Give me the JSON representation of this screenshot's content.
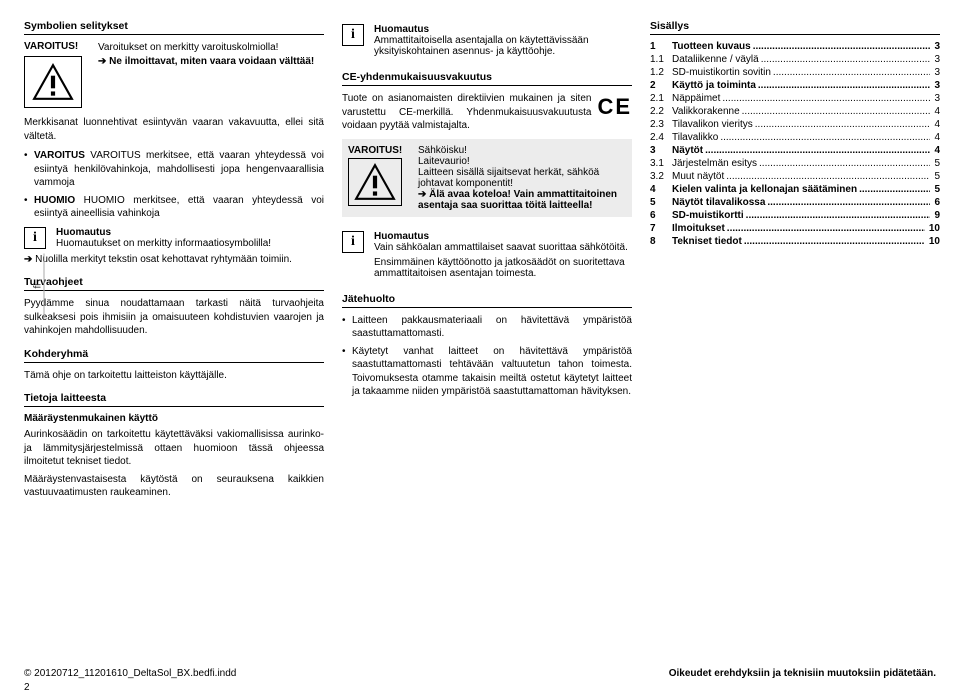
{
  "col1": {
    "symbolien_title": "Symbolien selitykset",
    "varoitus_label": "VAROITUS!",
    "varoitus_text1": "Varoitukset on merkitty varoituskolmiolla!",
    "varoitus_text2": "Ne ilmoittavat, miten vaara voidaan välttää!",
    "merkkisanat": "Merkkisanat luonnehtivat esiintyvän vaaran vakavuutta, ellei sitä vältetä.",
    "li1": "VAROITUS merkitsee, että vaaran yhteydessä voi esiintyä henkilövahinkoja, mahdollisesti jopa hengenvaarallisia vammoja",
    "li2": "HUOMIO merkitsee, että vaaran yhteydessä voi esiintyä aineellisia vahinkoja",
    "huomautus_label": "Huomautus",
    "huomautus_text": "Huomautukset on merkitty informaatio­symbolilla!",
    "nuolilla": "Nuolilla merkityt tekstin osat kehottavat ryhtymään toimiin.",
    "turva_title": "Turvaohjeet",
    "turva_text": "Pyydämme sinua noudattamaan tarkasti näitä turvaohjeita sulkeaksesi pois ihmisiin ja omaisuuteen kohdistuvien vaarojen ja vahinkojen mahdollisuuden.",
    "kohderyhma_title": "Kohderyhmä",
    "kohderyhma_text": "Tämä ohje on tarkoitettu laitteiston käyttäjälle.",
    "tietoja_title": "Tietoja laitteesta",
    "maarays_title": "Määräystenmukainen käyttö",
    "maarays_p1": "Aurinkosäädin on tarkoitettu käytettäväksi vakiomallisissa aurinko- ja lämmitysjärjestelmissä ottaen huomioon tässä ohjeessa ilmoitetut tekniset tiedot.",
    "maarays_p2": "Määräystenvastaisesta käytöstä on seurauksena kaikkien vastuuvaatimusten raukeaminen."
  },
  "col2": {
    "huomautus_label": "Huomautus",
    "huomautus_text": "Ammattitaitoisella asentajalla on käytettävissään yksityiskohtainen asennus- ja käyttöohje.",
    "ce_title": "CE-yhdenmukaisuusvakuutus",
    "ce_text": "Tuote on asianomaisten direktiivien mukainen ja siten varustettu CE-merkillä. Yhdenmukaisuusvakuutusta voidaan pyytää valmistajalta.",
    "warn_label": "VAROITUS!",
    "warn_head": "Sähköisku!",
    "warn_l1": "Laitevaurio!",
    "warn_l2": "Laitteen sisällä sijaitsevat herkät, sähköä johtavat komponentit!",
    "warn_l3a": "Älä avaa koteloa!",
    "warn_l3b": "Vain ammattitaitoinen asentaja saa suorittaa töitä laitteella!",
    "huom2_label": "Huomautus",
    "huom2_text": "Vain sähköalan ammattilaiset saavat suorittaa sähkötöitä.",
    "huom2_text2": "Ensimmäinen käyttöönotto ja jatkosäädöt on suoritettava ammattitaitoisen asentajan toimesta.",
    "jate_title": "Jätehuolto",
    "jate_li1": "Laitteen pakkausmateriaali on hävitettävä ympäristöä saastuttamattomasti.",
    "jate_li2": "Käytetyt vanhat laitteet on hävitettävä ympäristöä saastuttamattomasti tehtävään valtuutetun tahon toimesta. Toivomuksesta otamme takaisin meiltä ostetut käytetyt laitteet ja takaamme niiden ympäristöä saastuttamattoman hävityksen."
  },
  "col3": {
    "sisallys": "Sisällys",
    "toc": [
      {
        "n": "1",
        "t": "Tuotteen kuvaus",
        "p": "3",
        "b": true
      },
      {
        "n": "1.1",
        "t": "Dataliikenne / väylä",
        "p": "3",
        "b": false
      },
      {
        "n": "1.2",
        "t": "SD-muistikortin sovitin",
        "p": "3",
        "b": false
      },
      {
        "n": "2",
        "t": "Käyttö ja toiminta",
        "p": "3",
        "b": true
      },
      {
        "n": "2.1",
        "t": "Näppäimet",
        "p": "3",
        "b": false
      },
      {
        "n": "2.2",
        "t": "Valikkorakenne",
        "p": "4",
        "b": false
      },
      {
        "n": "2.3",
        "t": "Tilavalikon vieritys",
        "p": "4",
        "b": false
      },
      {
        "n": "2.4",
        "t": "Tilavalikko",
        "p": "4",
        "b": false
      },
      {
        "n": "3",
        "t": "Näytöt",
        "p": "4",
        "b": true
      },
      {
        "n": "3.1",
        "t": "Järjestelmän esitys",
        "p": "5",
        "b": false
      },
      {
        "n": "3.2",
        "t": "Muut näytöt",
        "p": "5",
        "b": false
      },
      {
        "n": "4",
        "t": "Kielen valinta ja kellonajan säätäminen",
        "p": "5",
        "b": true
      },
      {
        "n": "5",
        "t": "Näytöt tilavalikossa",
        "p": "6",
        "b": true
      },
      {
        "n": "6",
        "t": "SD-muistikortti",
        "p": "9",
        "b": true
      },
      {
        "n": "7",
        "t": "Ilmoitukset",
        "p": "10",
        "b": true
      },
      {
        "n": "8",
        "t": "Tekniset tiedot",
        "p": "10",
        "b": true
      }
    ]
  },
  "footer": {
    "copyright": "© 20120712_11201610_DeltaSol_BX.bedfi.indd",
    "rights": "Oikeudet erehdyksiin ja teknisiin muutoksiin pidätetään.",
    "page": "2",
    "side": "fi"
  }
}
